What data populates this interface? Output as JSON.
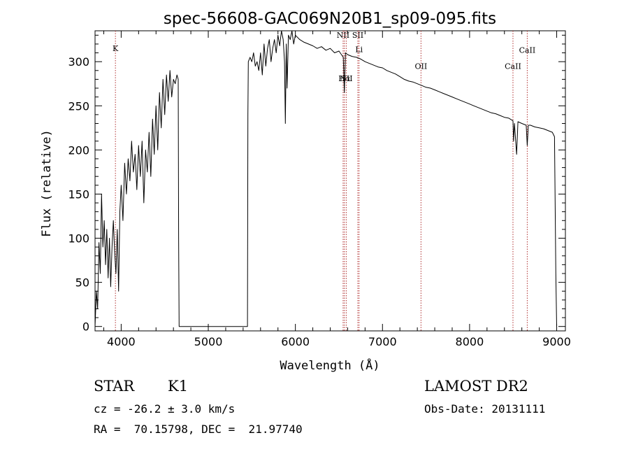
{
  "chart_data": {
    "type": "line",
    "title": "spec-56608-GAC069N20B1_sp09-095.fits",
    "xlabel": "Wavelength (Å)",
    "ylabel": "Flux (relative)",
    "xlim": [
      3700,
      9100
    ],
    "ylim": [
      -5,
      335
    ],
    "xticks": [
      4000,
      5000,
      6000,
      7000,
      8000,
      9000
    ],
    "yticks": [
      0,
      50,
      100,
      150,
      200,
      250,
      300
    ],
    "grid": false,
    "legend": "none",
    "series": [
      {
        "color": "#000000",
        "points": [
          [
            3700,
            0
          ],
          [
            3715,
            40
          ],
          [
            3730,
            20
          ],
          [
            3745,
            95
          ],
          [
            3760,
            60
          ],
          [
            3775,
            150
          ],
          [
            3790,
            90
          ],
          [
            3805,
            120
          ],
          [
            3820,
            70
          ],
          [
            3835,
            110
          ],
          [
            3850,
            55
          ],
          [
            3865,
            100
          ],
          [
            3880,
            45
          ],
          [
            3895,
            90
          ],
          [
            3910,
            120
          ],
          [
            3925,
            85
          ],
          [
            3940,
            60
          ],
          [
            3955,
            110
          ],
          [
            3970,
            40
          ],
          [
            3985,
            130
          ],
          [
            4000,
            160
          ],
          [
            4020,
            120
          ],
          [
            4040,
            185
          ],
          [
            4060,
            150
          ],
          [
            4080,
            190
          ],
          [
            4100,
            165
          ],
          [
            4120,
            210
          ],
          [
            4140,
            175
          ],
          [
            4160,
            195
          ],
          [
            4180,
            155
          ],
          [
            4200,
            205
          ],
          [
            4220,
            170
          ],
          [
            4240,
            210
          ],
          [
            4260,
            140
          ],
          [
            4280,
            200
          ],
          [
            4300,
            175
          ],
          [
            4320,
            220
          ],
          [
            4340,
            170
          ],
          [
            4360,
            235
          ],
          [
            4380,
            195
          ],
          [
            4400,
            250
          ],
          [
            4420,
            200
          ],
          [
            4440,
            265
          ],
          [
            4460,
            225
          ],
          [
            4480,
            280
          ],
          [
            4500,
            240
          ],
          [
            4520,
            285
          ],
          [
            4540,
            255
          ],
          [
            4560,
            290
          ],
          [
            4580,
            260
          ],
          [
            4600,
            280
          ],
          [
            4620,
            275
          ],
          [
            4640,
            285
          ],
          [
            4655,
            280
          ],
          [
            4660,
            100
          ],
          [
            4665,
            0
          ],
          [
            5450,
            0
          ],
          [
            5455,
            240
          ],
          [
            5460,
            300
          ],
          [
            5480,
            305
          ],
          [
            5500,
            300
          ],
          [
            5520,
            310
          ],
          [
            5540,
            295
          ],
          [
            5560,
            300
          ],
          [
            5580,
            290
          ],
          [
            5600,
            310
          ],
          [
            5620,
            285
          ],
          [
            5640,
            320
          ],
          [
            5660,
            295
          ],
          [
            5680,
            315
          ],
          [
            5700,
            325
          ],
          [
            5720,
            300
          ],
          [
            5740,
            315
          ],
          [
            5760,
            325
          ],
          [
            5780,
            310
          ],
          [
            5800,
            330
          ],
          [
            5820,
            318
          ],
          [
            5840,
            335
          ],
          [
            5860,
            325
          ],
          [
            5875,
            300
          ],
          [
            5885,
            230
          ],
          [
            5895,
            320
          ],
          [
            5905,
            270
          ],
          [
            5920,
            330
          ],
          [
            5940,
            325
          ],
          [
            5960,
            335
          ],
          [
            5980,
            320
          ],
          [
            6000,
            330
          ],
          [
            6050,
            325
          ],
          [
            6100,
            322
          ],
          [
            6150,
            320
          ],
          [
            6200,
            318
          ],
          [
            6250,
            315
          ],
          [
            6300,
            317
          ],
          [
            6350,
            313
          ],
          [
            6400,
            315
          ],
          [
            6450,
            310
          ],
          [
            6500,
            312
          ],
          [
            6550,
            305
          ],
          [
            6562,
            265
          ],
          [
            6575,
            310
          ],
          [
            6600,
            308
          ],
          [
            6650,
            306
          ],
          [
            6700,
            305
          ],
          [
            6750,
            303
          ],
          [
            6800,
            300
          ],
          [
            6850,
            298
          ],
          [
            6900,
            296
          ],
          [
            6950,
            294
          ],
          [
            7000,
            293
          ],
          [
            7050,
            290
          ],
          [
            7100,
            288
          ],
          [
            7150,
            286
          ],
          [
            7200,
            283
          ],
          [
            7250,
            280
          ],
          [
            7300,
            278
          ],
          [
            7350,
            277
          ],
          [
            7400,
            275
          ],
          [
            7450,
            273
          ],
          [
            7500,
            271
          ],
          [
            7550,
            270
          ],
          [
            7600,
            268
          ],
          [
            7650,
            266
          ],
          [
            7700,
            264
          ],
          [
            7750,
            262
          ],
          [
            7800,
            260
          ],
          [
            7850,
            258
          ],
          [
            7900,
            256
          ],
          [
            7950,
            254
          ],
          [
            8000,
            252
          ],
          [
            8050,
            250
          ],
          [
            8100,
            248
          ],
          [
            8150,
            246
          ],
          [
            8200,
            244
          ],
          [
            8250,
            242
          ],
          [
            8300,
            241
          ],
          [
            8350,
            239
          ],
          [
            8400,
            237
          ],
          [
            8450,
            236
          ],
          [
            8498,
            233
          ],
          [
            8505,
            210
          ],
          [
            8515,
            230
          ],
          [
            8540,
            195
          ],
          [
            8555,
            232
          ],
          [
            8600,
            230
          ],
          [
            8650,
            228
          ],
          [
            8662,
            205
          ],
          [
            8675,
            228
          ],
          [
            8700,
            228
          ],
          [
            8750,
            226
          ],
          [
            8800,
            225
          ],
          [
            8850,
            224
          ],
          [
            8900,
            222
          ],
          [
            8950,
            220
          ],
          [
            8975,
            215
          ],
          [
            8990,
            60
          ],
          [
            9000,
            0
          ]
        ]
      }
    ],
    "lines": [
      {
        "x": 3934,
        "label": "K",
        "label_y": 312
      },
      {
        "x": 6548,
        "label": "NII",
        "label_y": 327
      },
      {
        "x": 6563,
        "label": "Hα",
        "label_y": 278
      },
      {
        "x": 6584,
        "label": "NII",
        "label_y": 278
      },
      {
        "x": 6717,
        "label": "SII",
        "label_y": 327
      },
      {
        "x": 6731,
        "label": "Li",
        "label_y": 311
      },
      {
        "x": 7442,
        "label": "OII",
        "label_y": 292
      },
      {
        "x": 8498,
        "label": "CaII",
        "label_y": 292
      },
      {
        "x": 8662,
        "label": "CaII",
        "label_y": 310
      }
    ]
  },
  "info": {
    "class_label": "STAR",
    "subclass": "K1",
    "cz": "cz = -26.2 ± 3.0 km/s",
    "radec": "RA =  70.15798, DEC =  21.97740",
    "survey": "LAMOST DR2",
    "obs_date": "Obs-Date: 20131111"
  }
}
